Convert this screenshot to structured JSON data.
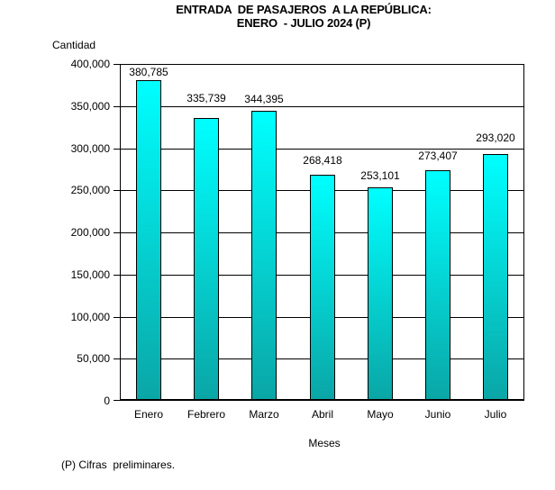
{
  "chart_data": {
    "type": "bar",
    "title_lines": [
      "ENTRADA  DE PASAJEROS  A LA REPÚBLICA:",
      "ENERO  - JULIO 2024 (P)"
    ],
    "ylabel": "Cantidad",
    "xlabel": "Meses",
    "footnote": "(P) Cifras  preliminares.",
    "categories": [
      "Enero",
      "Febrero",
      "Marzo",
      "Abril",
      "Mayo",
      "Junio",
      "Julio"
    ],
    "values": [
      380785,
      335739,
      344395,
      268418,
      253101,
      273407,
      293020
    ],
    "value_labels": [
      "380,785",
      "335,739",
      "344,395",
      "268,418",
      "253,101",
      "273,407",
      "293,020"
    ],
    "ylim": [
      0,
      400000
    ],
    "ytick_step": 50000,
    "ytick_labels": [
      "0",
      "50,000",
      "100,000",
      "150,000",
      "200,000",
      "250,000",
      "300,000",
      "350,000",
      "400,000"
    ],
    "grid": "horizontal",
    "legend": "none",
    "value_labels_visible": true,
    "colors": {
      "bar_gradient_top": "#00FFFF",
      "bar_gradient_bottom": "#0AA6A6",
      "bar_border": "#000000",
      "axis": "#000000",
      "text": "#000000",
      "background": "#FFFFFF"
    }
  }
}
